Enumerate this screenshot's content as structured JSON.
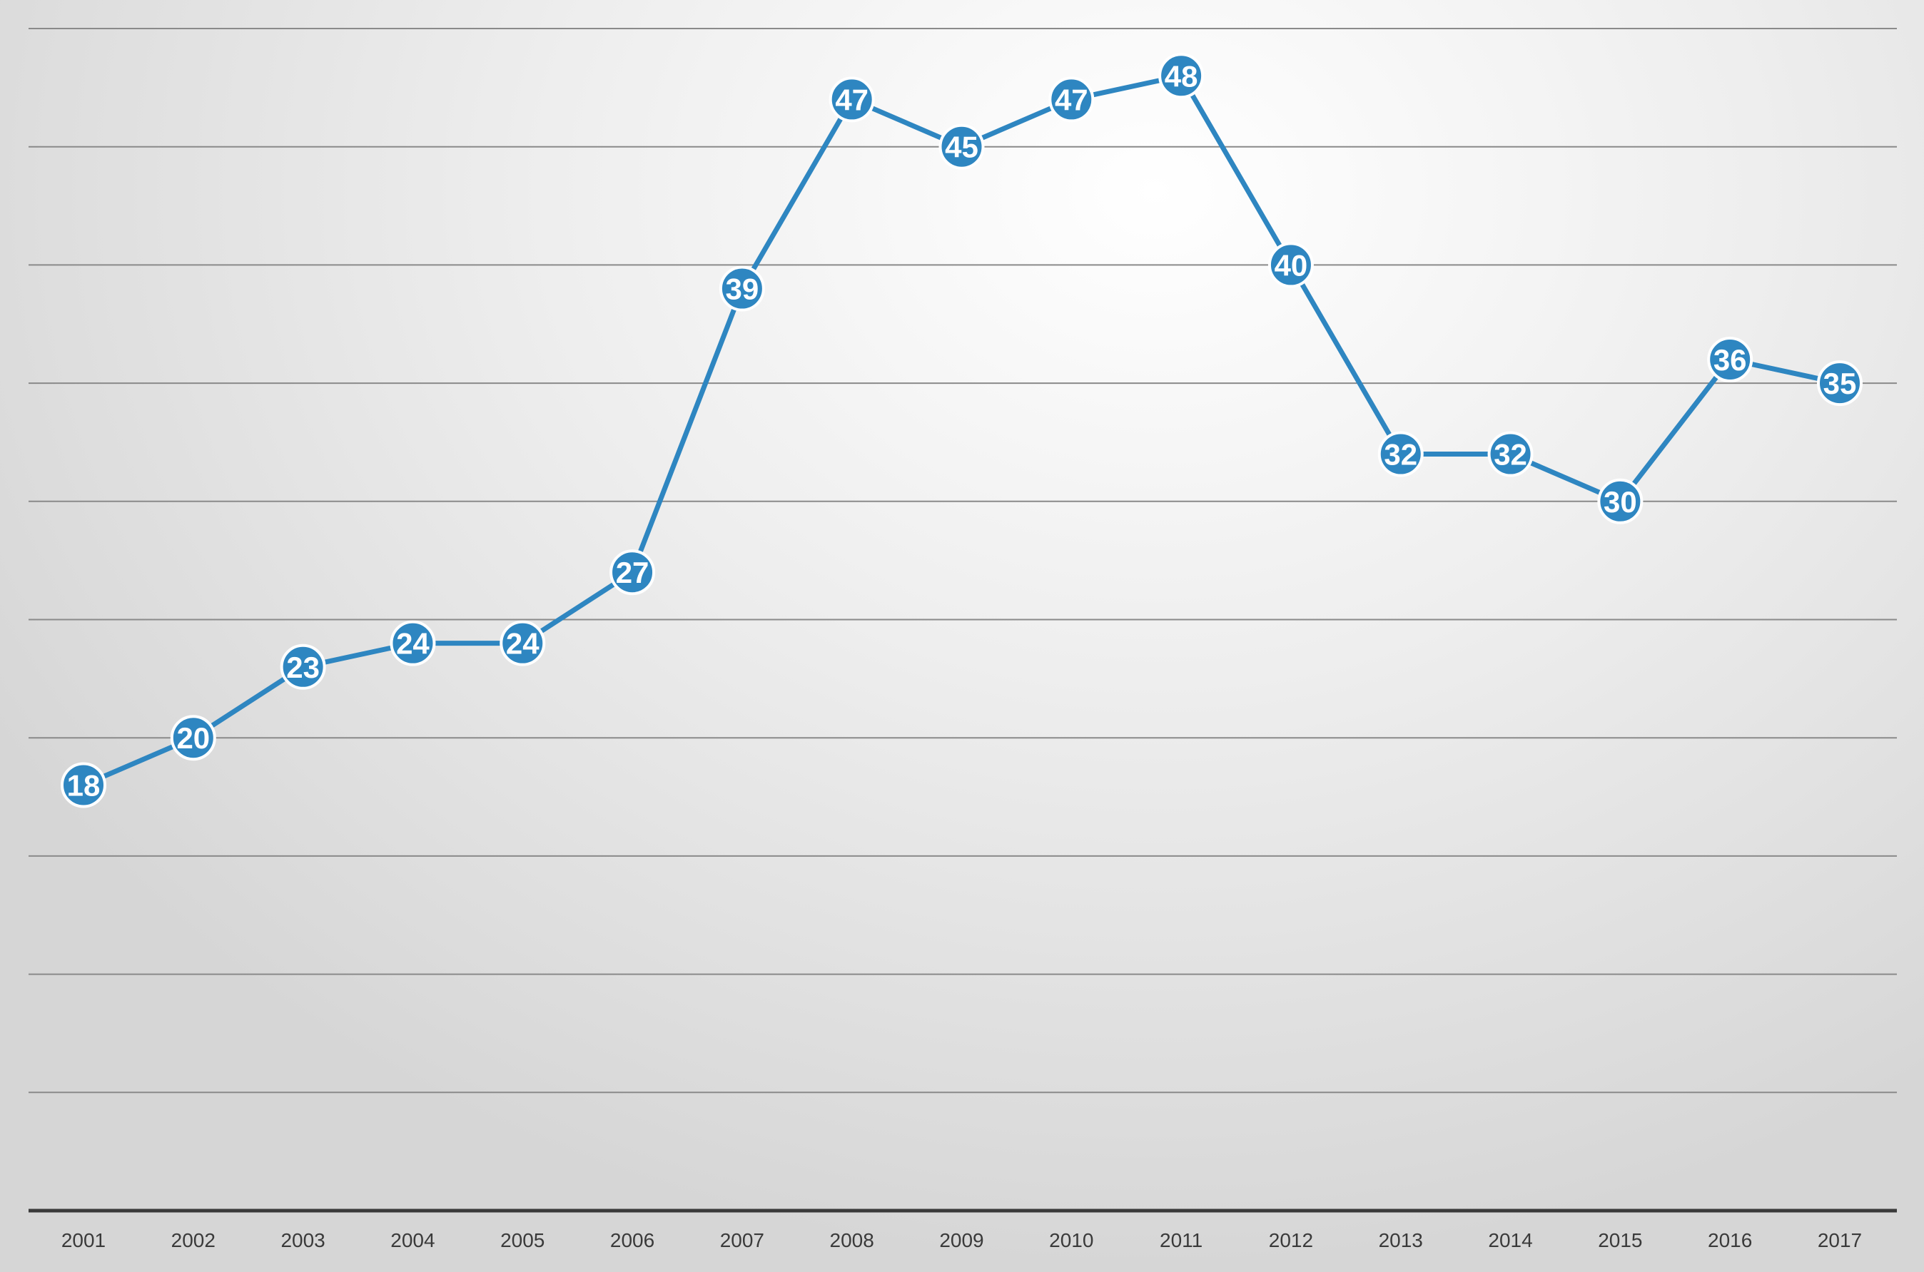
{
  "chart_data": {
    "type": "line",
    "categories": [
      "2001",
      "2002",
      "2003",
      "2004",
      "2005",
      "2006",
      "2007",
      "2008",
      "2009",
      "2010",
      "2011",
      "2012",
      "2013",
      "2014",
      "2015",
      "2016",
      "2017"
    ],
    "series": [
      {
        "values": [
          18,
          20,
          23,
          24,
          24,
          27,
          39,
          47,
          45,
          47,
          48,
          40,
          32,
          32,
          30,
          36,
          35
        ]
      }
    ],
    "title": "",
    "xlabel": "",
    "ylabel": "",
    "ylim": [
      0,
      50
    ],
    "y_gridline_step": 5,
    "grid": true,
    "data_labels": true,
    "colors": {
      "line": "#2e86c1",
      "marker_fill": "#2e86c1",
      "marker_stroke": "#ffffff",
      "label_text": "#ffffff",
      "gridline": "#8a8a8a",
      "axis": "#3a3a3a",
      "tick_text": "#3a3a3a"
    }
  }
}
